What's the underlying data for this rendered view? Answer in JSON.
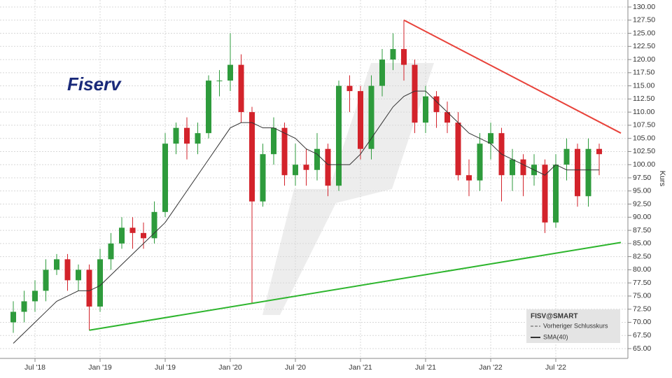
{
  "chart_data": {
    "type": "candlestick",
    "title": "Fiserv",
    "y_label": "Kurs",
    "x": [
      "2018-05",
      "2018-06",
      "2018-07",
      "2018-08",
      "2018-09",
      "2018-10",
      "2018-11",
      "2018-12",
      "2019-01",
      "2019-02",
      "2019-03",
      "2019-04",
      "2019-05",
      "2019-06",
      "2019-07",
      "2019-08",
      "2019-09",
      "2019-10",
      "2019-11",
      "2019-12",
      "2020-01",
      "2020-02",
      "2020-03",
      "2020-04",
      "2020-05",
      "2020-06",
      "2020-07",
      "2020-08",
      "2020-09",
      "2020-10",
      "2020-11",
      "2020-12",
      "2021-01",
      "2021-02",
      "2021-03",
      "2021-04",
      "2021-05",
      "2021-06",
      "2021-07",
      "2021-08",
      "2021-09",
      "2021-10",
      "2021-11",
      "2021-12",
      "2022-01",
      "2022-02",
      "2022-03",
      "2022-04",
      "2022-05",
      "2022-06",
      "2022-07",
      "2022-08",
      "2022-09",
      "2022-10",
      "2022-11"
    ],
    "open": [
      70,
      72,
      74,
      76,
      80,
      82,
      78,
      80,
      73,
      82,
      85,
      88,
      87,
      86,
      91,
      104,
      107,
      104,
      106,
      116,
      116,
      119,
      110,
      93,
      102,
      107,
      98,
      100,
      99,
      103,
      96,
      115,
      114,
      103,
      115,
      120,
      122,
      119,
      108,
      113,
      110,
      108,
      98,
      97,
      104,
      106,
      98,
      101,
      98,
      100,
      89,
      100,
      103,
      94,
      103
    ],
    "high": [
      74,
      76,
      78,
      82,
      83,
      83,
      81,
      81,
      84,
      87,
      90,
      90,
      89,
      93,
      106,
      108,
      109,
      108,
      117,
      118,
      125,
      121,
      111,
      104,
      109,
      108,
      104,
      103,
      106,
      104,
      116,
      117,
      115,
      117,
      122,
      125,
      127.5,
      120,
      115,
      114,
      112,
      110,
      101,
      106,
      108,
      107,
      103,
      102,
      102,
      101,
      102,
      105,
      104,
      105,
      104
    ],
    "low": [
      68,
      70,
      72,
      74,
      79,
      76,
      76,
      68.5,
      72,
      80,
      84,
      84,
      84,
      85,
      90,
      102,
      101,
      102,
      105,
      113,
      114,
      108,
      73.5,
      92,
      100,
      96,
      96,
      96,
      97,
      94,
      95,
      110,
      101,
      101,
      113,
      118,
      116,
      106,
      106,
      107,
      106,
      97,
      94,
      95,
      101,
      93,
      95,
      94,
      96,
      87,
      88,
      97,
      92,
      92,
      98
    ],
    "close": [
      72,
      74,
      76,
      80,
      82,
      78,
      80,
      73,
      82,
      85,
      88,
      87,
      86,
      91,
      104,
      107,
      104,
      106,
      116,
      116,
      119,
      110,
      93,
      102,
      107,
      98,
      100,
      99,
      103,
      96,
      115,
      114,
      103,
      115,
      120,
      122,
      119,
      108,
      113,
      110,
      108,
      98,
      97,
      104,
      106,
      98,
      101,
      98,
      100,
      89,
      100,
      103,
      94,
      103,
      102
    ],
    "up_color": "#2e9b3c",
    "down_color": "#d3232b",
    "series": [
      {
        "name": "SMA(40)",
        "color": "#333333",
        "values": [
          66,
          68,
          70,
          72,
          74,
          75,
          76,
          76,
          77,
          79,
          81,
          83,
          85,
          87,
          89,
          92,
          95,
          98,
          101,
          104,
          107,
          108,
          108,
          107,
          107,
          106,
          105,
          103,
          102,
          100,
          100,
          100,
          102,
          105,
          108,
          111,
          113,
          114,
          114,
          112,
          110,
          108,
          106,
          105,
          104,
          102,
          101,
          100,
          99,
          98,
          100,
          99,
          99,
          99,
          99
        ]
      }
    ],
    "trend_lines": [
      {
        "color": "#e8423a",
        "x": [
          "2021-05",
          "2023-01"
        ],
        "values": [
          127.5,
          106
        ]
      },
      {
        "color": "#2db52d",
        "x": [
          "2018-12",
          "2023-01"
        ],
        "values": [
          68.5,
          85.2
        ]
      }
    ],
    "legend": {
      "title": "FISV@SMART",
      "items": [
        "Vorheriger Schlusskurs",
        "SMA(40)"
      ]
    },
    "ylim": [
      65,
      130
    ],
    "yticks": [
      {
        "value": 65,
        "label": "65.00"
      },
      {
        "value": 67.5,
        "label": "67.50"
      },
      {
        "value": 70,
        "label": "70.00"
      },
      {
        "value": 72.5,
        "label": "72.50"
      },
      {
        "value": 75,
        "label": "75.00"
      },
      {
        "value": 77.5,
        "label": "77.50"
      },
      {
        "value": 80,
        "label": "80.00"
      },
      {
        "value": 82.5,
        "label": "82.50"
      },
      {
        "value": 85,
        "label": "85.00"
      },
      {
        "value": 87.5,
        "label": "87.50"
      },
      {
        "value": 90,
        "label": "90.00"
      },
      {
        "value": 92.5,
        "label": "92.50"
      },
      {
        "value": 95,
        "label": "95.00"
      },
      {
        "value": 97.5,
        "label": "97.50"
      },
      {
        "value": 100,
        "label": "100.00"
      },
      {
        "value": 102.5,
        "label": "102.50"
      },
      {
        "value": 105,
        "label": "105.00"
      },
      {
        "value": 107.5,
        "label": "107.50"
      },
      {
        "value": 110,
        "label": "110.00"
      },
      {
        "value": 112.5,
        "label": "112.50"
      },
      {
        "value": 115,
        "label": "115.00"
      },
      {
        "value": 117.5,
        "label": "117.50"
      },
      {
        "value": 120,
        "label": "120.00"
      },
      {
        "value": 122.5,
        "label": "122.50"
      },
      {
        "value": 125,
        "label": "125.00"
      },
      {
        "value": 127.5,
        "label": "127.50"
      },
      {
        "value": 130,
        "label": "130.00"
      }
    ],
    "xticks": [
      {
        "value": "2018-07",
        "label": "Jul '18"
      },
      {
        "value": "2019-01",
        "label": "Jan '19"
      },
      {
        "value": "2019-07",
        "label": "Jul '19"
      },
      {
        "value": "2020-01",
        "label": "Jan '20"
      },
      {
        "value": "2020-07",
        "label": "Jul '20"
      },
      {
        "value": "2021-01",
        "label": "Jan '21"
      },
      {
        "value": "2021-07",
        "label": "Jul '21"
      },
      {
        "value": "2022-01",
        "label": "Jan '22"
      },
      {
        "value": "2022-07",
        "label": "Jul '22"
      }
    ],
    "grid": true
  }
}
